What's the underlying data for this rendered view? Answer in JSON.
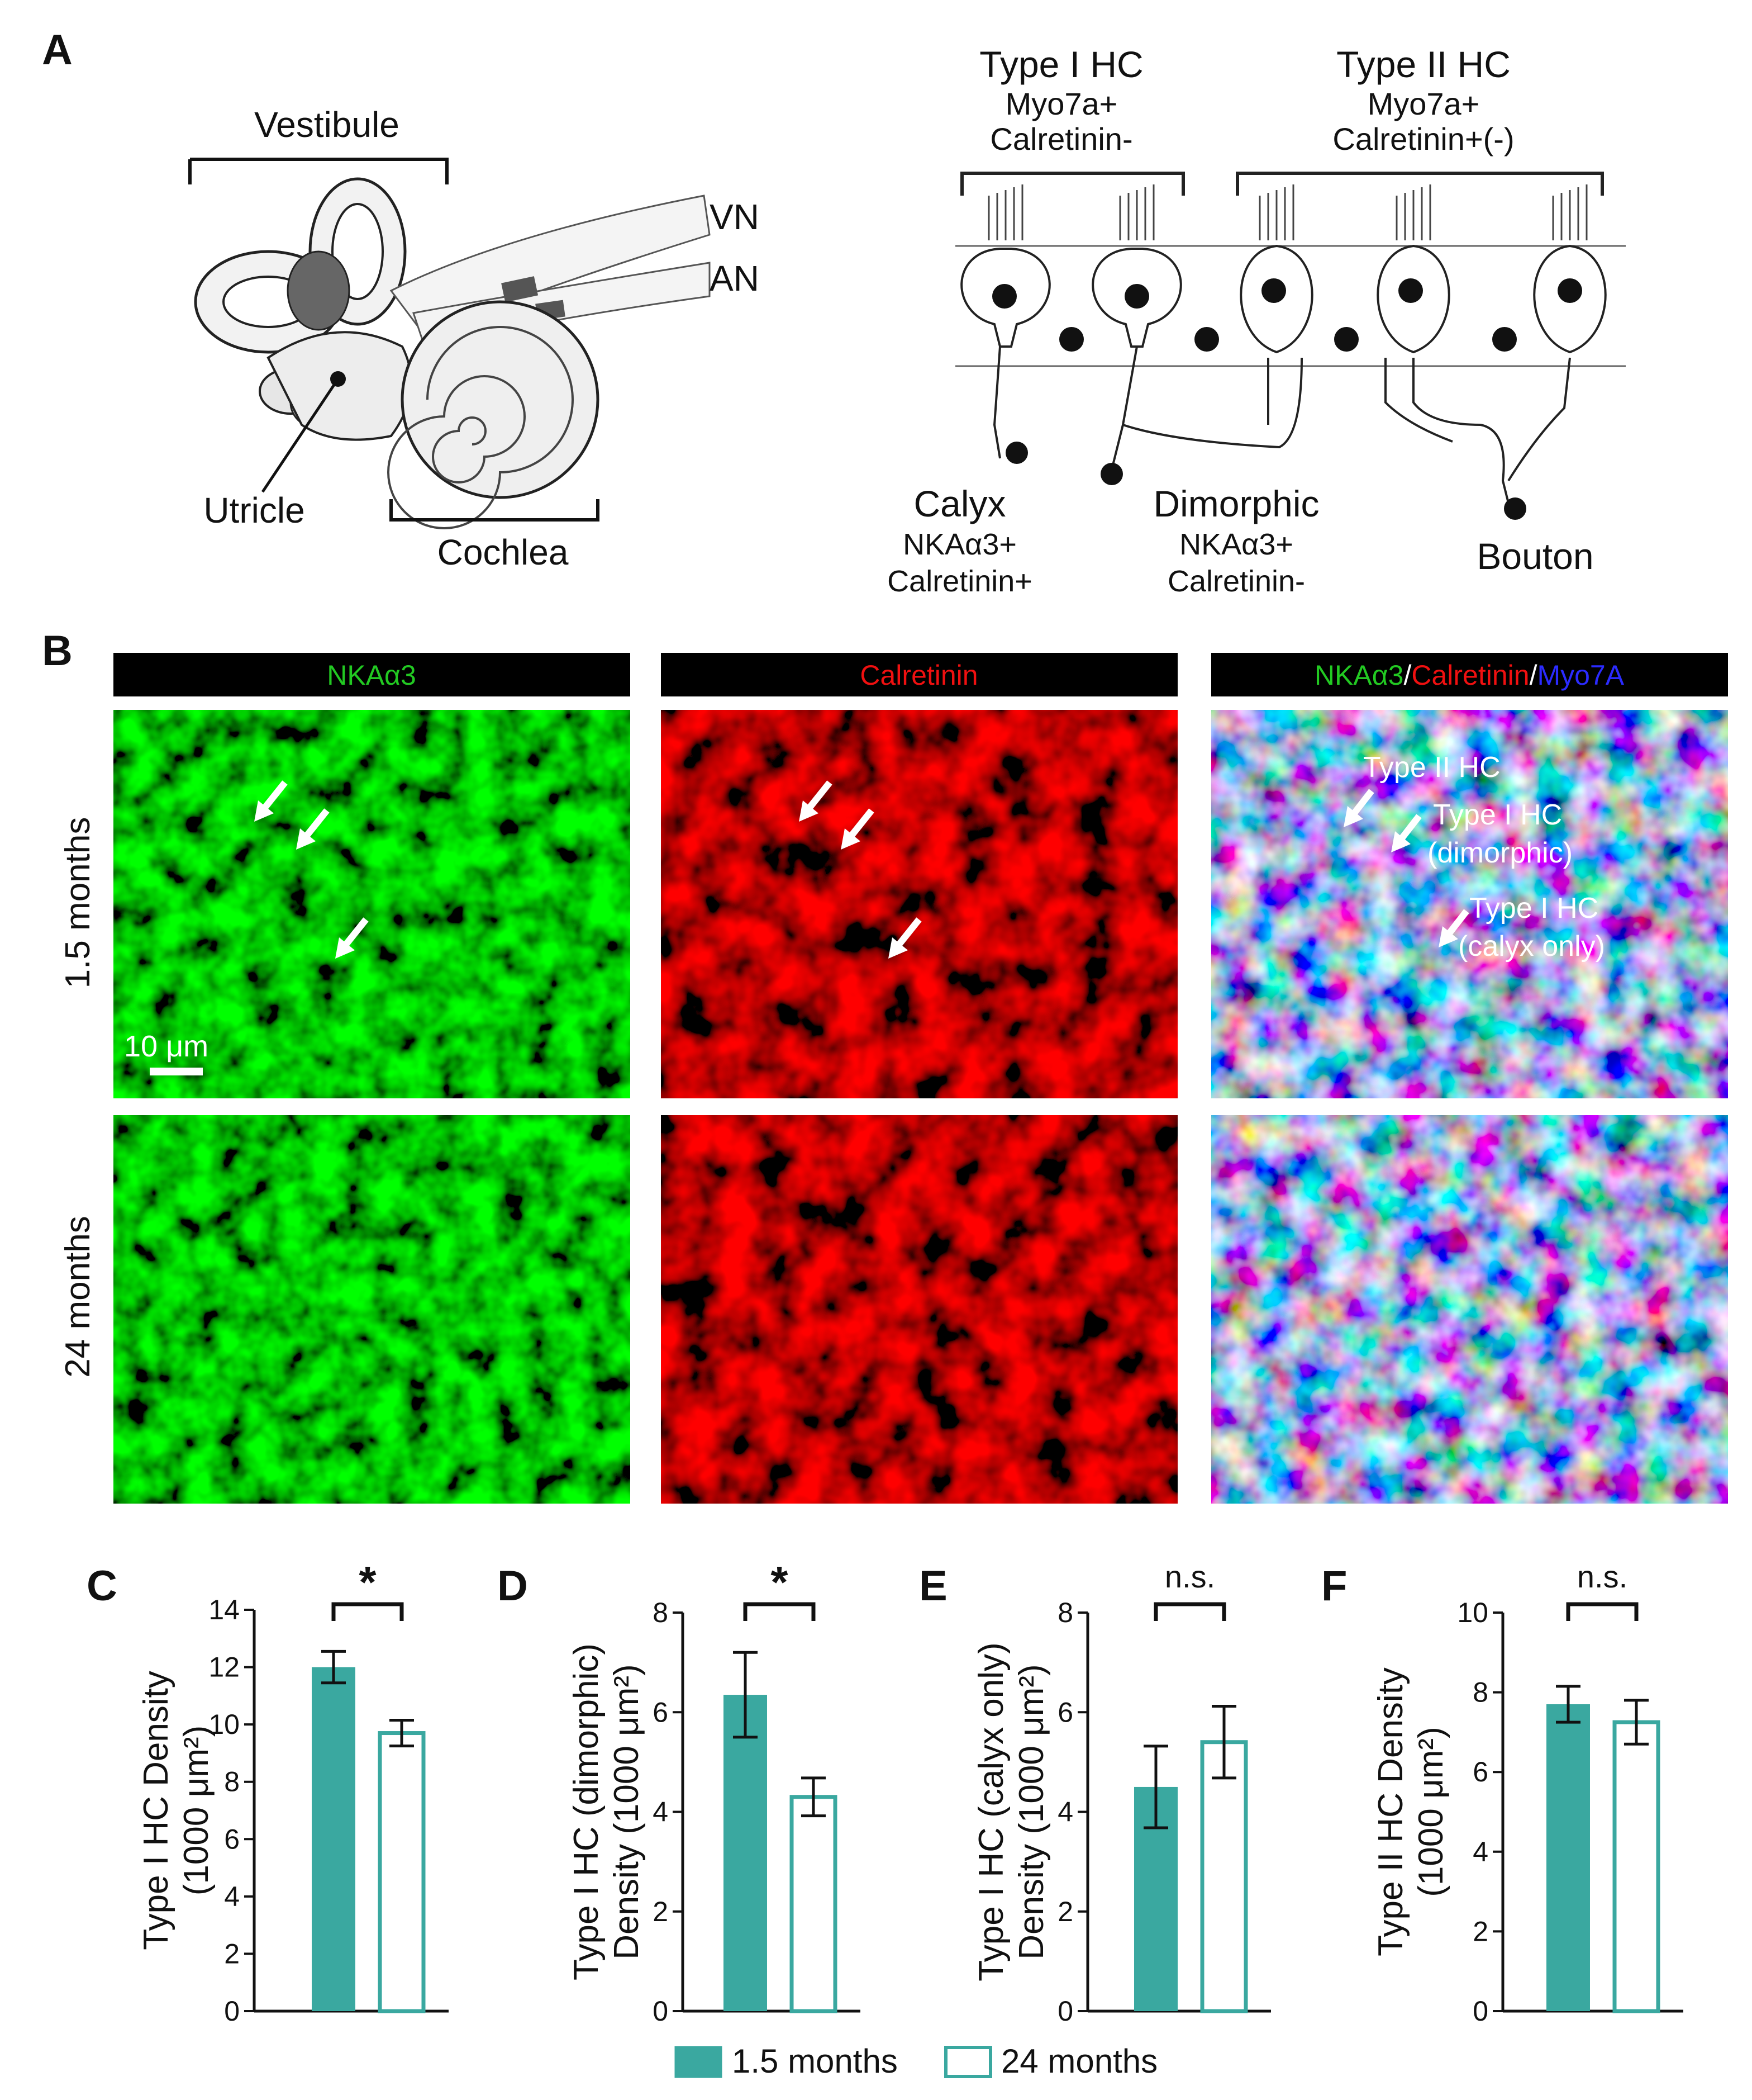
{
  "panels": {
    "A": {
      "label": "A",
      "anatomy": {
        "vestibule": "Vestibule",
        "vn": "VN",
        "an": "AN",
        "utricle": "Utricle",
        "cochlea": "Cochlea"
      },
      "schematic": {
        "type1_title": "Type I HC",
        "type1_sub1": "Myo7a+",
        "type1_sub2": "Calretinin-",
        "type2_title": "Type II HC",
        "type2_sub1": "Myo7a+",
        "type2_sub2": "Calretinin+(-)",
        "calyx_title": "Calyx",
        "calyx_sub1": "NKAα3+",
        "calyx_sub2": "Calretinin+",
        "dimorphic_title": "Dimorphic",
        "dimorphic_sub1": "NKAα3+",
        "dimorphic_sub2": "Calretinin-",
        "bouton": "Bouton"
      }
    },
    "B": {
      "label": "B",
      "col1": "NKAα3",
      "col2": "Calretinin",
      "col3_parts": [
        "NKAα3",
        "/",
        "Calretinin",
        "/",
        "Myo7A"
      ],
      "row1": "1.5 months",
      "row2": "24 months",
      "scale_bar": "10 μm",
      "annotations": {
        "a1": "Type II HC",
        "a2a": "Type I HC",
        "a2b": "(dimorphic)",
        "a3a": "Type I HC",
        "a3b": "(calyx only)"
      },
      "colors": {
        "green": "#22c922",
        "red": "#f01010",
        "blue": "#2020e0",
        "label_bg": "#000000"
      }
    }
  },
  "chart_data": [
    {
      "panel": "C",
      "type": "bar",
      "categories": [
        "1.5 months",
        "24 months"
      ],
      "values": [
        12.0,
        9.7
      ],
      "errors": [
        0.55,
        0.45
      ],
      "ylabel_lines": [
        "Type I HC Density",
        "(1000 μm²)"
      ],
      "ylim": [
        0,
        14
      ],
      "yticks": [
        "0",
        "2",
        "4",
        "6",
        "8",
        "10",
        "12",
        "14"
      ],
      "significance": "*"
    },
    {
      "panel": "D",
      "type": "bar",
      "categories": [
        "1.5 months",
        "24 months"
      ],
      "values": [
        6.35,
        4.3
      ],
      "errors": [
        0.85,
        0.38
      ],
      "ylabel_lines": [
        "Type I HC (dimorphic)",
        "Density (1000 μm²)"
      ],
      "ylim": [
        0,
        8
      ],
      "yticks": [
        "0",
        "2",
        "4",
        "6",
        "8"
      ],
      "significance": "*"
    },
    {
      "panel": "E",
      "type": "bar",
      "categories": [
        "1.5 months",
        "24 months"
      ],
      "values": [
        4.5,
        5.4
      ],
      "errors": [
        0.82,
        0.72
      ],
      "ylabel_lines": [
        "Type I HC (calyx only)",
        "Density (1000 μm²)"
      ],
      "ylim": [
        0,
        8
      ],
      "yticks": [
        "0",
        "2",
        "4",
        "6",
        "8"
      ],
      "significance": "n.s."
    },
    {
      "panel": "F",
      "type": "bar",
      "categories": [
        "1.5 months",
        "24 months"
      ],
      "values": [
        7.7,
        7.25
      ],
      "errors": [
        0.45,
        0.55
      ],
      "ylabel_lines": [
        "Type II HC Density",
        "(1000 μm²)"
      ],
      "ylim": [
        0,
        10
      ],
      "yticks": [
        "0",
        "2",
        "4",
        "6",
        "8",
        "10"
      ],
      "significance": "n.s."
    }
  ],
  "legend": {
    "items": [
      "1.5 months",
      "24 months"
    ],
    "colors": {
      "filled": "#3aa8a0",
      "outline": "#3aa8a0"
    }
  }
}
